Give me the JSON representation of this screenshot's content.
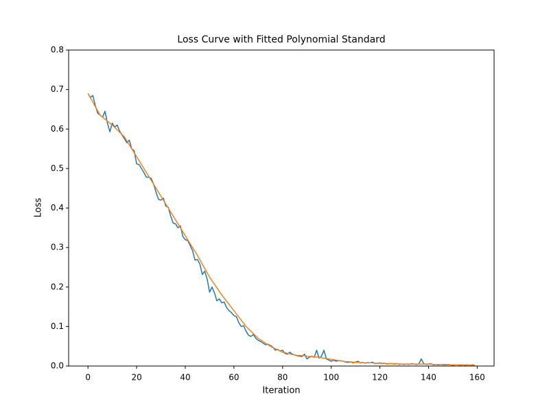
{
  "chart_data": {
    "type": "line",
    "title": "Loss Curve with Fitted Polynomial Standard",
    "x_label": "Iteration",
    "y_label": "Loss",
    "x": [
      0,
      1,
      2,
      3,
      4,
      5,
      6,
      7,
      8,
      9,
      10,
      11,
      12,
      13,
      14,
      15,
      16,
      17,
      18,
      19,
      20,
      21,
      22,
      23,
      24,
      25,
      26,
      27,
      28,
      29,
      30,
      31,
      32,
      33,
      34,
      35,
      36,
      37,
      38,
      39,
      40,
      41,
      42,
      43,
      44,
      45,
      46,
      47,
      48,
      49,
      50,
      51,
      52,
      53,
      54,
      55,
      56,
      57,
      58,
      59,
      60,
      61,
      62,
      63,
      64,
      65,
      66,
      67,
      68,
      69,
      70,
      71,
      72,
      73,
      74,
      75,
      76,
      77,
      78,
      79,
      80,
      81,
      82,
      83,
      84,
      85,
      86,
      87,
      88,
      89,
      90,
      91,
      92,
      93,
      94,
      95,
      96,
      97,
      98,
      99,
      100,
      101,
      102,
      103,
      104,
      105,
      106,
      107,
      108,
      109,
      110,
      111,
      112,
      113,
      114,
      115,
      116,
      117,
      118,
      119,
      120,
      121,
      122,
      123,
      124,
      125,
      126,
      127,
      128,
      129,
      130,
      131,
      132,
      133,
      134,
      135,
      136,
      137,
      138,
      139,
      140,
      141,
      142,
      143,
      144,
      145,
      146,
      147,
      148,
      149,
      150,
      151,
      152,
      153,
      154,
      155,
      156,
      157,
      158,
      159
    ],
    "series": [
      {
        "color": "#1f77b4",
        "values": [
          0.69,
          0.68,
          0.685,
          0.66,
          0.64,
          0.635,
          0.63,
          0.645,
          0.615,
          0.593,
          0.615,
          0.605,
          0.61,
          0.595,
          0.585,
          0.575,
          0.565,
          0.572,
          0.55,
          0.545,
          0.512,
          0.51,
          0.5,
          0.49,
          0.478,
          0.478,
          0.475,
          0.46,
          0.44,
          0.422,
          0.42,
          0.425,
          0.405,
          0.402,
          0.38,
          0.362,
          0.36,
          0.35,
          0.355,
          0.328,
          0.32,
          0.318,
          0.305,
          0.292,
          0.268,
          0.27,
          0.258,
          0.232,
          0.24,
          0.22,
          0.187,
          0.2,
          0.185,
          0.165,
          0.17,
          0.16,
          0.162,
          0.148,
          0.14,
          0.135,
          0.128,
          0.125,
          0.11,
          0.1,
          0.102,
          0.088,
          0.078,
          0.075,
          0.08,
          0.07,
          0.065,
          0.062,
          0.058,
          0.054,
          0.055,
          0.052,
          0.048,
          0.04,
          0.042,
          0.038,
          0.04,
          0.032,
          0.03,
          0.035,
          0.03,
          0.028,
          0.026,
          0.025,
          0.024,
          0.03,
          0.018,
          0.022,
          0.025,
          0.022,
          0.04,
          0.02,
          0.025,
          0.04,
          0.018,
          0.015,
          0.012,
          0.015,
          0.012,
          0.014,
          0.013,
          0.012,
          0.01,
          0.009,
          0.011,
          0.008,
          0.01,
          0.012,
          0.008,
          0.009,
          0.007,
          0.009,
          0.008,
          0.01,
          0.006,
          0.007,
          0.008,
          0.006,
          0.007,
          0.005,
          0.006,
          0.006,
          0.005,
          0.006,
          0.004,
          0.005,
          0.004,
          0.005,
          0.004,
          0.006,
          0.005,
          0.004,
          0.005,
          0.018,
          0.006,
          0.004,
          0.005,
          0.006,
          0.003,
          0.004,
          0.003,
          0.004,
          0.003,
          0.003,
          0.004,
          0.003,
          0.002,
          0.003,
          0.003,
          0.002,
          0.003,
          0.002,
          0.003,
          0.002,
          0.003,
          0.002
        ]
      },
      {
        "color": "#ff7f0e",
        "values": [
          0.69,
          0.679,
          0.668,
          0.657,
          0.646,
          0.635,
          0.63,
          0.625,
          0.62,
          0.615,
          0.61,
          0.604,
          0.598,
          0.592,
          0.586,
          0.58,
          0.57,
          0.56,
          0.55,
          0.54,
          0.53,
          0.52,
          0.51,
          0.5,
          0.49,
          0.48,
          0.47,
          0.46,
          0.45,
          0.44,
          0.43,
          0.42,
          0.41,
          0.4,
          0.39,
          0.38,
          0.37,
          0.36,
          0.35,
          0.34,
          0.33,
          0.32,
          0.31,
          0.3,
          0.29,
          0.28,
          0.269,
          0.258,
          0.247,
          0.236,
          0.225,
          0.216,
          0.207,
          0.198,
          0.189,
          0.18,
          0.172,
          0.164,
          0.156,
          0.148,
          0.14,
          0.132,
          0.124,
          0.116,
          0.108,
          0.1,
          0.094,
          0.088,
          0.082,
          0.076,
          0.07,
          0.066,
          0.062,
          0.058,
          0.054,
          0.05,
          0.047,
          0.044,
          0.041,
          0.038,
          0.035,
          0.034,
          0.032,
          0.031,
          0.029,
          0.028,
          0.027,
          0.027,
          0.026,
          0.026,
          0.025,
          0.024,
          0.024,
          0.023,
          0.023,
          0.022,
          0.021,
          0.02,
          0.019,
          0.018,
          0.017,
          0.016,
          0.015,
          0.014,
          0.013,
          0.012,
          0.011,
          0.011,
          0.01,
          0.01,
          0.009,
          0.009,
          0.009,
          0.008,
          0.008,
          0.008,
          0.008,
          0.008,
          0.007,
          0.007,
          0.007,
          0.007,
          0.007,
          0.006,
          0.006,
          0.006,
          0.006,
          0.006,
          0.005,
          0.005,
          0.005,
          0.005,
          0.005,
          0.005,
          0.005,
          0.005,
          0.005,
          0.005,
          0.005,
          0.005,
          0.005,
          0.005,
          0.004,
          0.004,
          0.004,
          0.004,
          0.004,
          0.004,
          0.003,
          0.003,
          0.003,
          0.003,
          0.003,
          0.003,
          0.003,
          0.003,
          0.003,
          0.002,
          0.002,
          0.002
        ]
      }
    ],
    "xlim": [
      -7.95,
      166.95
    ],
    "ylim": [
      0,
      0.8
    ],
    "xticks": [
      0,
      20,
      40,
      60,
      80,
      100,
      120,
      140,
      160
    ],
    "yticks": [
      {
        "value": 0,
        "label": "0.0"
      },
      0.1,
      0.2,
      0.3,
      0.4,
      0.5,
      0.6,
      0.7,
      0.8
    ],
    "grid": false
  }
}
